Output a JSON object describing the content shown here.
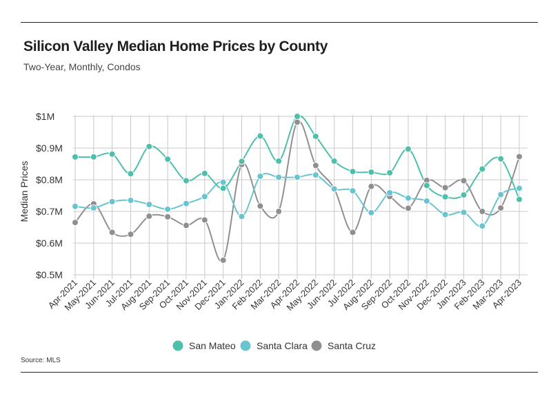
{
  "header": {
    "title": "Silicon Valley Median Home Prices by County",
    "subtitle": "Two-Year, Monthly, Condos"
  },
  "footer": {
    "source": "Source:  MLS"
  },
  "chart_data": {
    "type": "line",
    "title": "Silicon Valley Median Home Prices by County",
    "subtitle": "Two-Year, Monthly, Condos",
    "xlabel": "",
    "ylabel": "Median Prices",
    "ylim": [
      0.5,
      1.0
    ],
    "y_ticks": [
      {
        "value": 1.0,
        "label": "$1M"
      },
      {
        "value": 0.9,
        "label": "$0.9M"
      },
      {
        "value": 0.8,
        "label": "$0.8M"
      },
      {
        "value": 0.7,
        "label": "$0.7M"
      },
      {
        "value": 0.6,
        "label": "$0.6M"
      },
      {
        "value": 0.5,
        "label": "$0.5M"
      }
    ],
    "grid": true,
    "legend_position": "bottom",
    "categories": [
      "Apr-2021",
      "May-2021",
      "Jun-2021",
      "Jul-2021",
      "Aug-2021",
      "Sep-2021",
      "Oct-2021",
      "Nov-2021",
      "Dec-2021",
      "Jan-2022",
      "Feb-2022",
      "Mar-2022",
      "Apr-2022",
      "May-2022",
      "Jun-2022",
      "Jul-2022",
      "Aug-2022",
      "Sep-2022",
      "Oct-2022",
      "Nov-2022",
      "Dec-2022",
      "Jan-2023",
      "Feb-2023",
      "Mar-2023",
      "Apr-2023"
    ],
    "series": [
      {
        "name": "San Mateo",
        "color": "#4dbfaa",
        "values": [
          0.872,
          0.872,
          0.881,
          0.819,
          0.905,
          0.865,
          0.797,
          0.82,
          0.773,
          0.858,
          0.938,
          0.859,
          1.0,
          0.937,
          0.859,
          0.826,
          0.824,
          0.822,
          0.897,
          0.782,
          0.746,
          0.752,
          0.834,
          0.866,
          0.738
        ]
      },
      {
        "name": "Santa Clara",
        "color": "#6ac4cf",
        "values": [
          0.716,
          0.711,
          0.731,
          0.735,
          0.722,
          0.707,
          0.725,
          0.747,
          0.792,
          0.684,
          0.811,
          0.808,
          0.808,
          0.815,
          0.771,
          0.765,
          0.696,
          0.759,
          0.742,
          0.733,
          0.69,
          0.697,
          0.654,
          0.753,
          0.773
        ]
      },
      {
        "name": "Santa Cruz",
        "color": "#8f8f8f",
        "values": [
          0.665,
          0.724,
          0.634,
          0.628,
          0.685,
          0.683,
          0.656,
          0.673,
          0.546,
          0.848,
          0.717,
          0.7,
          0.982,
          0.845,
          0.772,
          0.634,
          0.779,
          0.747,
          0.71,
          0.798,
          0.775,
          0.797,
          0.7,
          0.711,
          0.873
        ]
      }
    ]
  }
}
